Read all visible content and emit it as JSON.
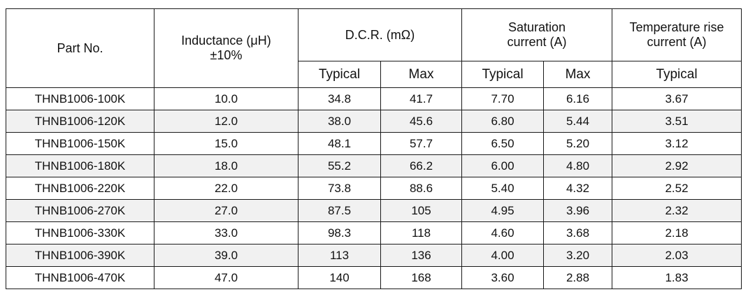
{
  "header": {
    "part_no": "Part No.",
    "inductance": {
      "line1": "Inductance (μH)",
      "line2": "±10%"
    },
    "dcr": "D.C.R. (mΩ)",
    "saturation": {
      "line1": "Saturation",
      "line2": "current (A)"
    },
    "temp_rise": {
      "line1": "Temperature rise",
      "line2": "current (A)"
    },
    "sub": {
      "dcr_typical": "Typical",
      "dcr_max": "Max",
      "sat_typical": "Typical",
      "sat_max": "Max",
      "temp_typical": "Typical"
    }
  },
  "rows": [
    {
      "part": "THNB1006-100K",
      "inductance": "10.0",
      "dcr_typ": "34.8",
      "dcr_max": "41.7",
      "sat_typ": "7.70",
      "sat_max": "6.16",
      "temp_typ": "3.67"
    },
    {
      "part": "THNB1006-120K",
      "inductance": "12.0",
      "dcr_typ": "38.0",
      "dcr_max": "45.6",
      "sat_typ": "6.80",
      "sat_max": "5.44",
      "temp_typ": "3.51"
    },
    {
      "part": "THNB1006-150K",
      "inductance": "15.0",
      "dcr_typ": "48.1",
      "dcr_max": "57.7",
      "sat_typ": "6.50",
      "sat_max": "5.20",
      "temp_typ": "3.12"
    },
    {
      "part": "THNB1006-180K",
      "inductance": "18.0",
      "dcr_typ": "55.2",
      "dcr_max": "66.2",
      "sat_typ": "6.00",
      "sat_max": "4.80",
      "temp_typ": "2.92"
    },
    {
      "part": "THNB1006-220K",
      "inductance": "22.0",
      "dcr_typ": "73.8",
      "dcr_max": "88.6",
      "sat_typ": "5.40",
      "sat_max": "4.32",
      "temp_typ": "2.52"
    },
    {
      "part": "THNB1006-270K",
      "inductance": "27.0",
      "dcr_typ": "87.5",
      "dcr_max": "105",
      "sat_typ": "4.95",
      "sat_max": "3.96",
      "temp_typ": "2.32"
    },
    {
      "part": "THNB1006-330K",
      "inductance": "33.0",
      "dcr_typ": "98.3",
      "dcr_max": "118",
      "sat_typ": "4.60",
      "sat_max": "3.68",
      "temp_typ": "2.18"
    },
    {
      "part": "THNB1006-390K",
      "inductance": "39.0",
      "dcr_typ": "113",
      "dcr_max": "136",
      "sat_typ": "4.00",
      "sat_max": "3.20",
      "temp_typ": "2.03"
    },
    {
      "part": "THNB1006-470K",
      "inductance": "47.0",
      "dcr_typ": "140",
      "dcr_max": "168",
      "sat_typ": "3.60",
      "sat_max": "2.88",
      "temp_typ": "1.83"
    }
  ]
}
